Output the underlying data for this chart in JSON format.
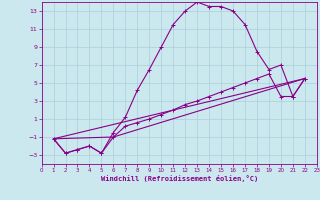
{
  "background_color": "#cce8ef",
  "grid_color": "#aacfd8",
  "line_color": "#880088",
  "xlabel": "Windchill (Refroidissement éolien,°C)",
  "xlim": [
    0,
    23
  ],
  "ylim": [
    -4,
    14
  ],
  "xticks": [
    0,
    1,
    2,
    3,
    4,
    5,
    6,
    7,
    8,
    9,
    10,
    11,
    12,
    13,
    14,
    15,
    16,
    17,
    18,
    19,
    20,
    21,
    22,
    23
  ],
  "yticks": [
    -3,
    -1,
    1,
    3,
    5,
    7,
    9,
    11,
    13
  ],
  "curve1_x": [
    1,
    2,
    3,
    4,
    5,
    6,
    7,
    8,
    9,
    10,
    11,
    12,
    13,
    14,
    15,
    16,
    17,
    18,
    19,
    20,
    21,
    22
  ],
  "curve1_y": [
    -1.2,
    -2.8,
    -2.4,
    -2.0,
    -2.8,
    -0.5,
    1.2,
    4.2,
    6.5,
    9.0,
    11.5,
    13.0,
    14.0,
    13.5,
    13.5,
    13.0,
    11.5,
    8.5,
    6.5,
    7.0,
    3.5,
    5.5
  ],
  "curve2_x": [
    1,
    2,
    3,
    4,
    5,
    6,
    7,
    8,
    9,
    10,
    11,
    12,
    13,
    14,
    15,
    16,
    17,
    18,
    19,
    20,
    21,
    22
  ],
  "curve2_y": [
    -1.2,
    -2.8,
    -2.4,
    -2.0,
    -2.8,
    -1.0,
    0.2,
    0.6,
    1.0,
    1.5,
    2.0,
    2.6,
    3.0,
    3.5,
    4.0,
    4.5,
    5.0,
    5.5,
    6.0,
    3.5,
    3.5,
    5.5
  ],
  "line1_x": [
    1,
    22
  ],
  "line1_y": [
    -1.2,
    5.5
  ],
  "line2_x": [
    1,
    6,
    22
  ],
  "line2_y": [
    -1.2,
    -1.0,
    5.5
  ]
}
